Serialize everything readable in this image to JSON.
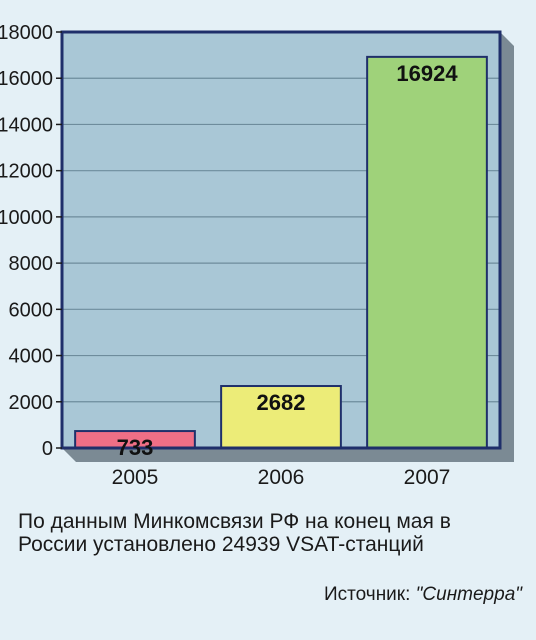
{
  "chart_data": {
    "type": "bar",
    "categories": [
      "2005",
      "2006",
      "2007"
    ],
    "values": [
      733,
      2682,
      16924
    ],
    "value_labels": [
      "733",
      "2682",
      "16924"
    ],
    "bar_colors": [
      "#ef6f86",
      "#ecec78",
      "#9fd27a"
    ],
    "ylim": [
      0,
      18000
    ],
    "yticks": [
      0,
      2000,
      4000,
      6000,
      8000,
      10000,
      12000,
      14000,
      16000,
      18000
    ],
    "grid": true,
    "legend": "none",
    "title": "",
    "xlabel": "",
    "ylabel": ""
  },
  "colors": {
    "plot_background": "#a9c7d6",
    "page_background": "#e4f0f6",
    "gridline": "#6e8c9c",
    "frame": "#1f2f6a",
    "frame_shadow": "#7b8a94"
  },
  "note": "По данным Минкомсвязи РФ на конец мая в России установлено 24939 VSAT-станций",
  "source": {
    "prefix": "Источник: ",
    "name": "\"Синтерра\""
  }
}
